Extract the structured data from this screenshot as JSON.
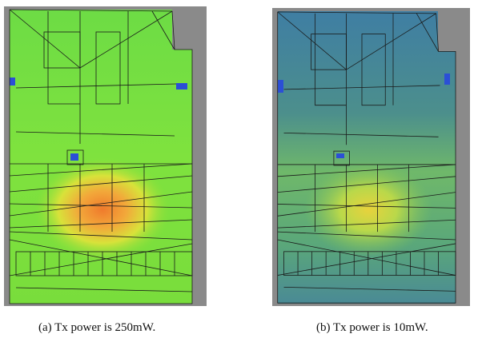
{
  "figure": {
    "panels": [
      {
        "caption": "(a) Tx power is 250mW."
      },
      {
        "caption": "(b) Tx power is 10mW."
      }
    ]
  }
}
